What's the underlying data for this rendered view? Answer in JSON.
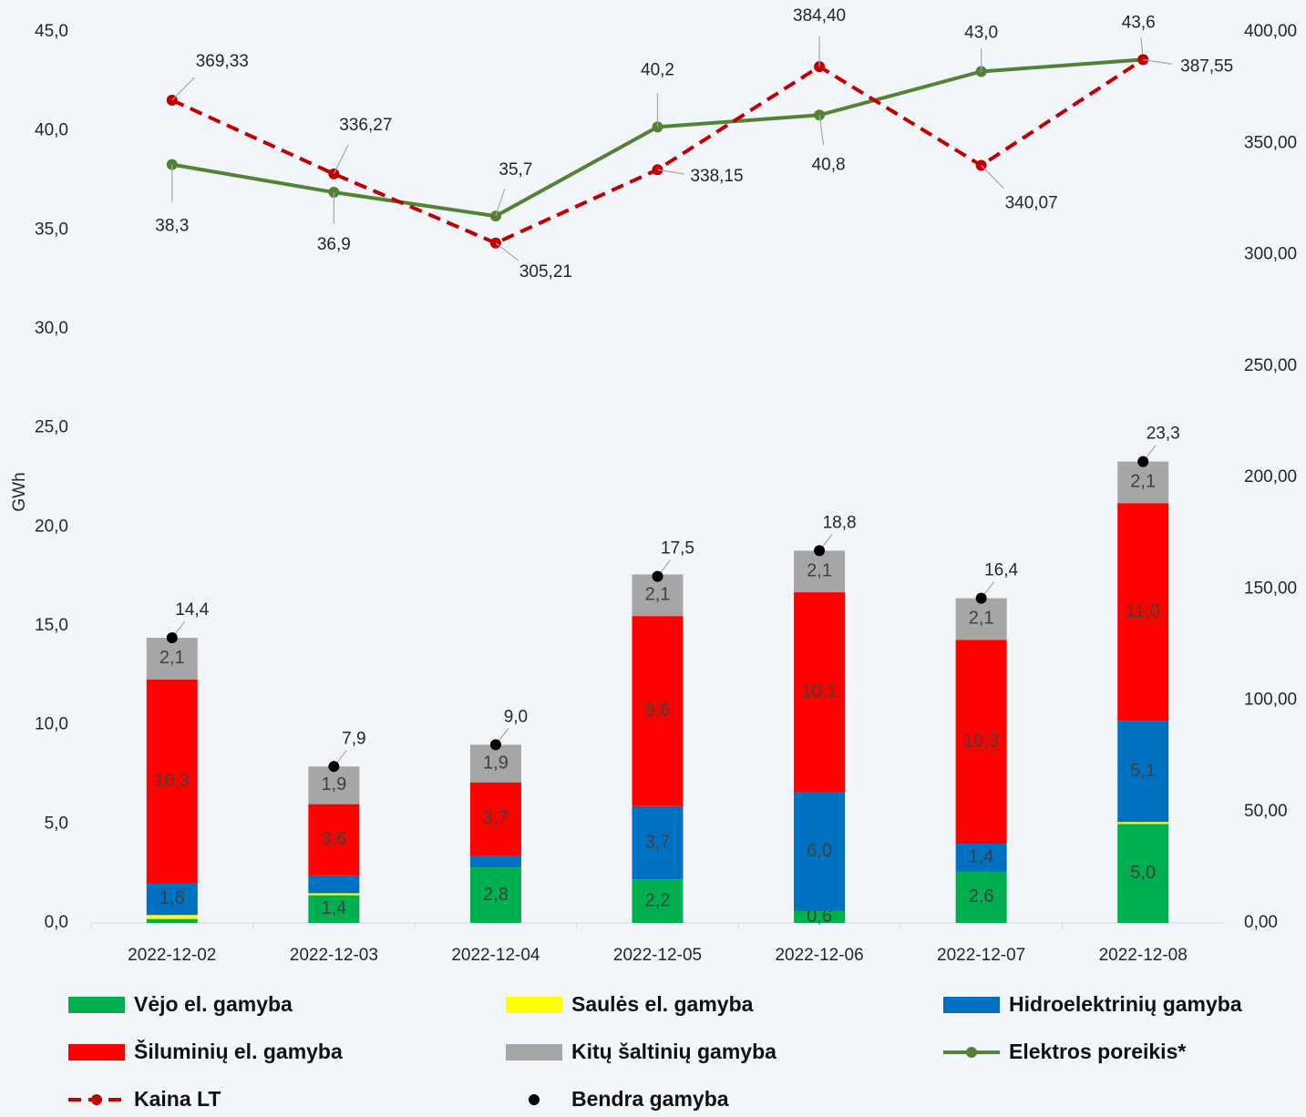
{
  "chart_data": {
    "type": "bar",
    "stacked": true,
    "categories": [
      "2022-12-02",
      "2022-12-03",
      "2022-12-04",
      "2022-12-05",
      "2022-12-06",
      "2022-12-07",
      "2022-12-08"
    ],
    "ylabel": "GWh",
    "ylim": [
      0,
      45
    ],
    "yticks": [
      {
        "value": 0,
        "label": "0,0"
      },
      {
        "value": 5,
        "label": "5,0"
      },
      {
        "value": 10,
        "label": "10,0"
      },
      {
        "value": 15,
        "label": "15,0"
      },
      {
        "value": 20,
        "label": "20,0"
      },
      {
        "value": 25,
        "label": "25,0"
      },
      {
        "value": 30,
        "label": "30,0"
      },
      {
        "value": 35,
        "label": "35,0"
      },
      {
        "value": 40,
        "label": "40,0"
      },
      {
        "value": 45,
        "label": "45,0"
      }
    ],
    "y2lim": [
      0,
      400
    ],
    "y2ticks": [
      {
        "value": 0,
        "label": "0,00"
      },
      {
        "value": 50,
        "label": "50,00"
      },
      {
        "value": 100,
        "label": "100,00"
      },
      {
        "value": 150,
        "label": "150,00"
      },
      {
        "value": 200,
        "label": "200,00"
      },
      {
        "value": 250,
        "label": "250,00"
      },
      {
        "value": 300,
        "label": "300,00"
      },
      {
        "value": 350,
        "label": "350,00"
      },
      {
        "value": 400,
        "label": "400,00"
      }
    ],
    "series": [
      {
        "name": "Vėjo el. gamyba",
        "type": "bar",
        "color": "#00b050",
        "values": [
          0.2,
          1.4,
          2.8,
          2.2,
          0.6,
          2.6,
          5.0
        ],
        "value_labels": [
          null,
          "1,4",
          "2,8",
          "2,2",
          "0,6",
          "2,6",
          "5,0"
        ]
      },
      {
        "name": "Saulės el. gamyba",
        "type": "bar",
        "color": "#ffff00",
        "values": [
          0.2,
          0.1,
          0.0,
          0.0,
          0.0,
          0.0,
          0.1
        ]
      },
      {
        "name": "Hidroelektrinių gamyba",
        "type": "bar",
        "color": "#0070c0",
        "values": [
          1.6,
          0.9,
          0.6,
          3.7,
          6.0,
          1.4,
          5.1
        ],
        "value_labels": [
          "1,6",
          null,
          null,
          "3,7",
          "6,0",
          "1,4",
          "5,1"
        ]
      },
      {
        "name": "Šiluminių el. gamyba",
        "type": "bar",
        "color": "#ff0000",
        "values": [
          10.3,
          3.6,
          3.7,
          9.6,
          10.1,
          10.3,
          11.0
        ],
        "value_labels": [
          "10,3",
          "3,6",
          "3,7",
          "9,6",
          "10,1",
          "10,3",
          "11,0"
        ]
      },
      {
        "name": "Kitų  šaltinių gamyba",
        "type": "bar",
        "color": "#a6a6a6",
        "values": [
          2.1,
          1.9,
          1.9,
          2.1,
          2.1,
          2.1,
          2.1
        ],
        "value_labels": [
          "2,1",
          "1,9",
          "1,9",
          "2,1",
          "2,1",
          "2,1",
          "2,1"
        ]
      },
      {
        "name": "Elektros poreikis*",
        "type": "line",
        "color": "#548235",
        "values": [
          38.3,
          36.9,
          35.7,
          40.2,
          40.8,
          43.0,
          43.6
        ],
        "value_labels": [
          "38,3",
          "36,9",
          "35,7",
          "40,2",
          "40,8",
          "43,0",
          "43,6"
        ]
      },
      {
        "name": "Kaina LT",
        "type": "line",
        "axis": "y2",
        "dashed": true,
        "color": "#c00000",
        "values": [
          369.33,
          336.27,
          305.21,
          338.15,
          384.4,
          340.07,
          387.55
        ],
        "value_labels": [
          "369,33",
          "336,27",
          "305,21",
          "338,15",
          "384,40",
          "340,07",
          "387,55"
        ]
      },
      {
        "name": "Bendra gamyba",
        "type": "scatter",
        "color": "#000000",
        "values": [
          14.4,
          7.9,
          9.0,
          17.5,
          18.8,
          16.4,
          23.3
        ],
        "value_labels": [
          "14,4",
          "7,9",
          "9,0",
          "17,5",
          "18,8",
          "16,4",
          "23,3"
        ]
      }
    ]
  }
}
